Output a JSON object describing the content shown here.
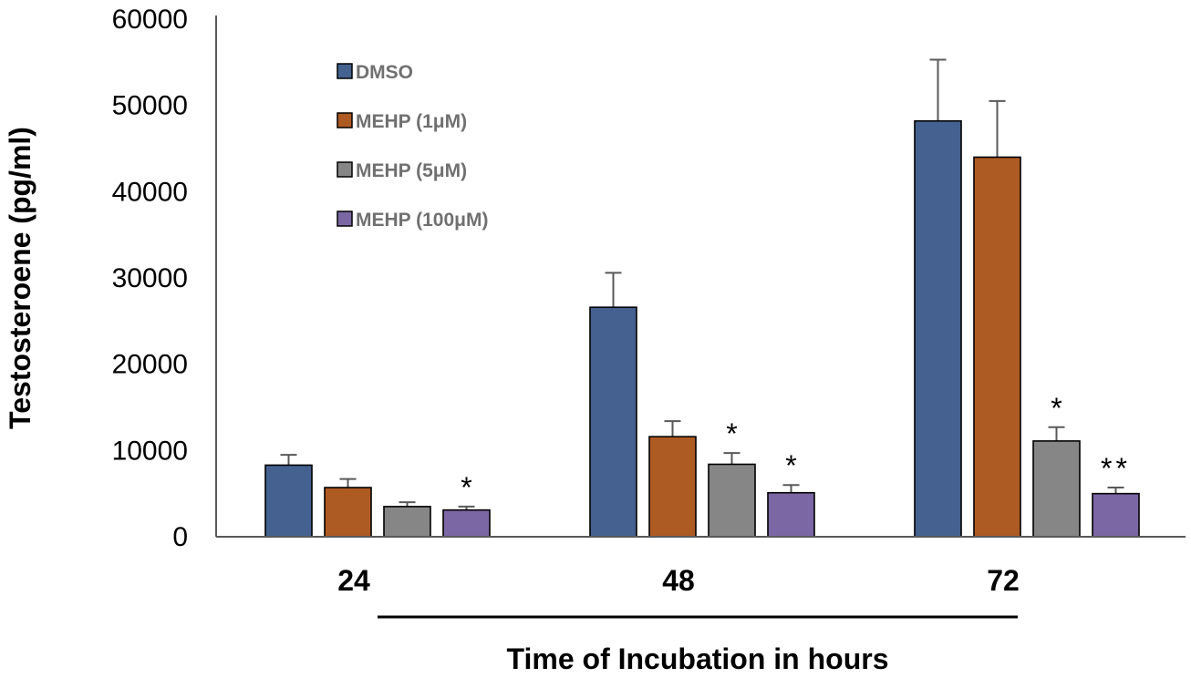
{
  "chart_data": {
    "type": "bar",
    "title": "",
    "xlabel": "Time of Incubation in hours",
    "ylabel": "Testosteroene (pg/ml)",
    "ylim": [
      0,
      60000
    ],
    "yticks": [
      0,
      10000,
      20000,
      30000,
      40000,
      50000,
      60000
    ],
    "grid": false,
    "legend_position": "top-left",
    "categories": [
      "24",
      "48",
      "72"
    ],
    "series": [
      {
        "name": "DMSO",
        "color": "#44618f",
        "values": [
          8300,
          26600,
          48200
        ],
        "errors": [
          1200,
          4000,
          7100
        ],
        "significance": [
          "",
          "",
          ""
        ]
      },
      {
        "name": "MEHP (1μM)",
        "color": "#ae5a23",
        "values": [
          5700,
          11600,
          44000
        ],
        "errors": [
          1000,
          1800,
          6500
        ],
        "significance": [
          "",
          "",
          ""
        ]
      },
      {
        "name": "MEHP (5μM)",
        "color": "#868686",
        "values": [
          3500,
          8400,
          11100
        ],
        "errors": [
          500,
          1300,
          1600
        ],
        "significance": [
          "",
          "*",
          "*"
        ]
      },
      {
        "name": "MEHP (100μM)",
        "color": "#7b67a4",
        "values": [
          3100,
          5100,
          5000
        ],
        "errors": [
          400,
          900,
          700
        ],
        "significance": [
          "*",
          "*",
          "**"
        ]
      }
    ]
  }
}
